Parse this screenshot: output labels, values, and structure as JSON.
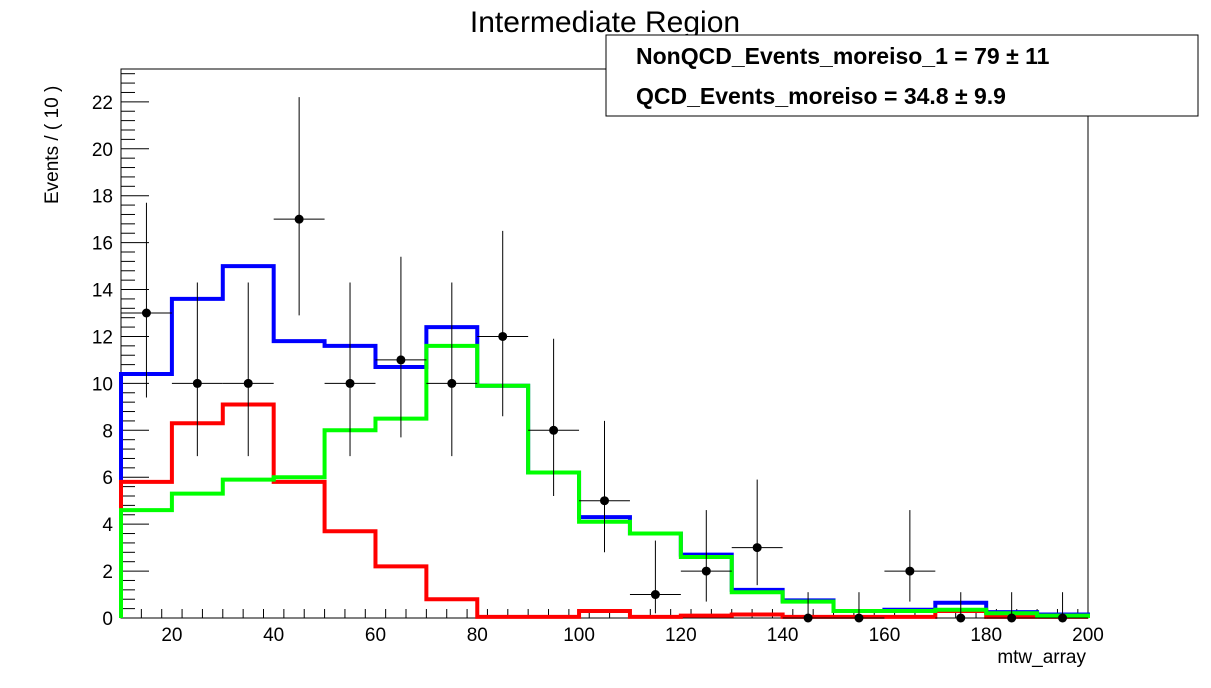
{
  "chart_data": {
    "type": "histogram",
    "title": "Intermediate Region",
    "xlabel": "mtw_array",
    "ylabel": "Events / ( 10 )",
    "xlim": [
      10,
      200
    ],
    "ylim": [
      0,
      23.4
    ],
    "x_ticks": [
      20,
      40,
      60,
      80,
      100,
      120,
      140,
      160,
      180,
      200
    ],
    "y_ticks": [
      0,
      2,
      4,
      6,
      8,
      10,
      12,
      14,
      16,
      18,
      20,
      22
    ],
    "bin_edges": [
      10,
      20,
      30,
      40,
      50,
      60,
      70,
      80,
      90,
      100,
      110,
      120,
      130,
      140,
      150,
      160,
      170,
      180,
      190,
      200
    ],
    "stat_box": [
      {
        "name": "NonQCD_Events_moreiso_1",
        "value": "79",
        "error": "11"
      },
      {
        "name": "QCD_Events_moreiso",
        "value": "34.8",
        "error": "9.9"
      }
    ],
    "series": [
      {
        "kind": "step",
        "color": "#0000ff",
        "values": [
          10.4,
          13.6,
          15.0,
          11.8,
          11.6,
          10.7,
          12.4,
          9.9,
          6.2,
          4.3,
          3.6,
          2.7,
          1.2,
          0.75,
          0.3,
          0.35,
          0.65,
          0.25,
          0.15
        ]
      },
      {
        "kind": "step",
        "color": "#ff0000",
        "values": [
          5.8,
          8.3,
          9.1,
          5.8,
          3.7,
          2.2,
          0.8,
          0.05,
          0.05,
          0.3,
          0.05,
          0.1,
          0.15,
          0.05,
          0.05,
          0.05,
          0.3,
          0.05,
          0.05
        ]
      },
      {
        "kind": "step",
        "color": "#00ff00",
        "values": [
          4.6,
          5.3,
          5.9,
          6.0,
          8.0,
          8.5,
          11.6,
          9.9,
          6.2,
          4.1,
          3.6,
          2.6,
          1.1,
          0.7,
          0.3,
          0.3,
          0.35,
          0.2,
          0.1
        ]
      },
      {
        "kind": "points",
        "color": "#000000",
        "x": [
          15,
          25,
          35,
          45,
          55,
          65,
          75,
          85,
          95,
          105,
          115,
          125,
          135,
          145,
          155,
          165,
          175,
          185,
          195
        ],
        "y": [
          13,
          10,
          10,
          17,
          10,
          11,
          10,
          12,
          8,
          5,
          1,
          2,
          3,
          0,
          0,
          2,
          0,
          0,
          0
        ],
        "err_low": [
          3.6,
          3.1,
          3.1,
          4.1,
          3.1,
          3.3,
          3.1,
          3.4,
          2.8,
          2.2,
          0.8,
          1.3,
          1.6,
          0,
          0,
          1.3,
          0,
          0,
          0
        ],
        "err_high": [
          4.7,
          4.3,
          4.3,
          5.2,
          4.3,
          4.4,
          4.3,
          4.5,
          3.9,
          3.4,
          2.3,
          2.6,
          2.9,
          1.1,
          1.1,
          2.6,
          1.1,
          1.1,
          1.1
        ]
      }
    ]
  }
}
